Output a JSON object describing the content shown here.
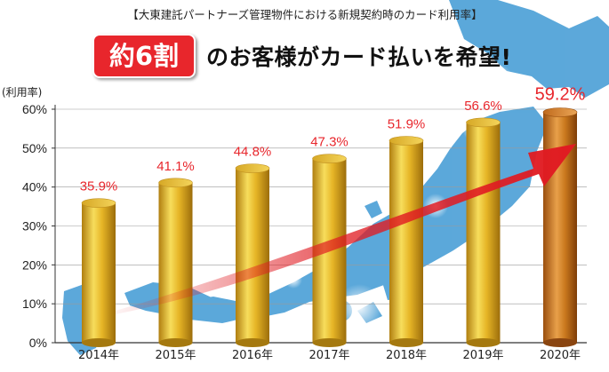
{
  "header": {
    "subtitle": "【大東建託パートナーズ管理物件における新規契約時のカード利用率】",
    "badge": "約6割",
    "headline": "のお客様がカード払いを希望!"
  },
  "colors": {
    "bar_gold": "#e6b526",
    "bar_highlight": "#c9781d",
    "label_red": "#e8262c",
    "map_blue": "#4a9fd6",
    "arrow_red": "#e01b22"
  },
  "chart_data": {
    "type": "bar",
    "categories": [
      "2014年",
      "2015年",
      "2016年",
      "2017年",
      "2018年",
      "2019年",
      "2020年"
    ],
    "values": [
      35.9,
      41.1,
      44.8,
      47.3,
      51.9,
      56.6,
      59.2
    ],
    "value_labels": [
      "35.9%",
      "41.1%",
      "44.8%",
      "47.3%",
      "51.9%",
      "56.6%",
      "59.2%"
    ],
    "ylabel": "(利用率)",
    "yticks": [
      "0%",
      "10%",
      "20%",
      "30%",
      "40%",
      "50%",
      "60%"
    ],
    "ylim": [
      0,
      60
    ],
    "highlight_index": 6,
    "grid": true,
    "annotation": "upward trend arrow"
  }
}
